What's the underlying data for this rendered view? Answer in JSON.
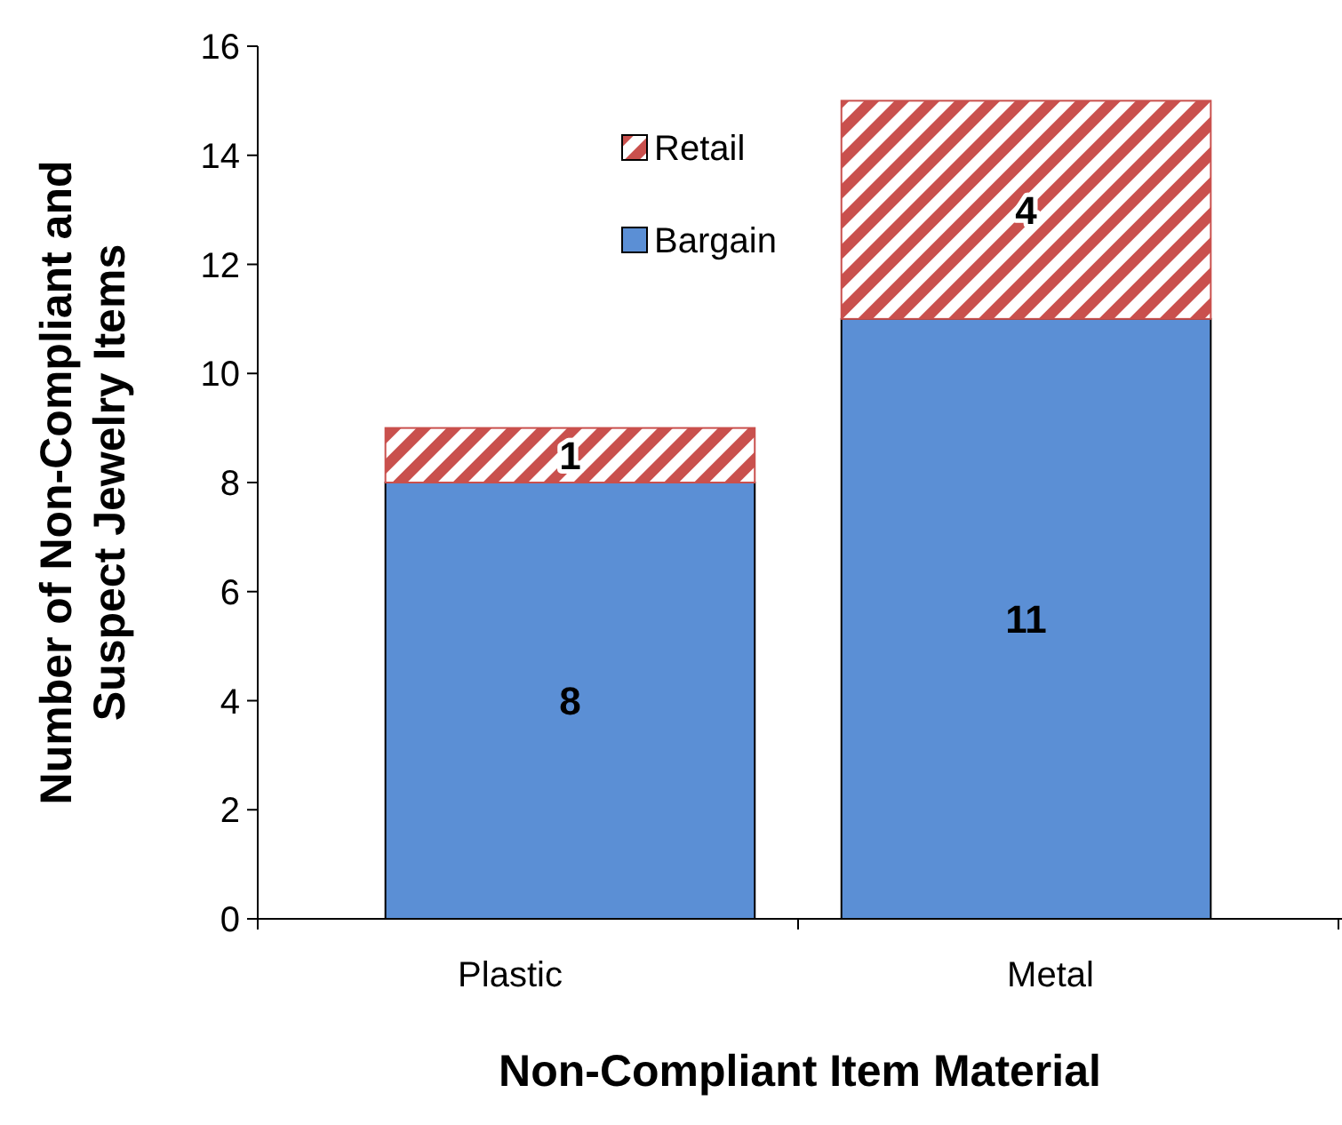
{
  "chart_data": {
    "type": "bar",
    "stacked": true,
    "xlabel": "Non-Compliant Item Material",
    "ylabel": "Number of Non-Compliant and Suspect Jewelry Items",
    "categories": [
      "Plastic",
      "Metal"
    ],
    "series": [
      {
        "name": "Bargain",
        "color": "#5b8fd5",
        "values": [
          8,
          11
        ]
      },
      {
        "name": "Retail",
        "color": "#c9504d",
        "values": [
          1,
          4
        ]
      }
    ],
    "ylim": [
      0,
      16
    ],
    "yticks": [
      0,
      2,
      4,
      6,
      8,
      10,
      12,
      14,
      16
    ],
    "data_labels": true,
    "legend": "top",
    "grid": false
  }
}
